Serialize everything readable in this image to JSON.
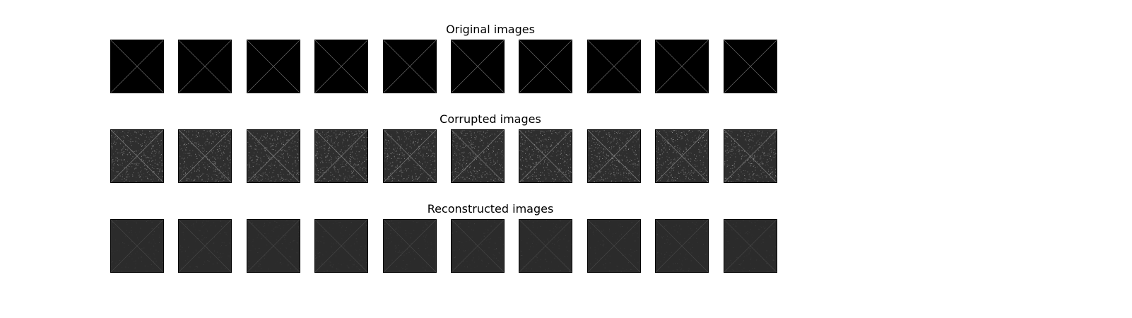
{
  "figure": {
    "rows": [
      {
        "title": "Original images",
        "tile_count": 10,
        "background": "#000000",
        "line_color": "#6a6a6a",
        "noise": "none"
      },
      {
        "title": "Corrupted images",
        "tile_count": 10,
        "background": "#2e2e2e",
        "line_color": "#8a8a8a",
        "noise": "heavy"
      },
      {
        "title": "Reconstructed images",
        "tile_count": 10,
        "background": "#2b2b2b",
        "line_color": "#444444",
        "noise": "light"
      }
    ]
  }
}
